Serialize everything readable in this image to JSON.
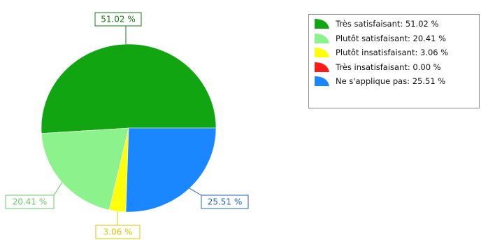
{
  "chart_data": {
    "type": "pie",
    "slices": [
      {
        "label": "Très satisfaisant",
        "value": 51.02,
        "color": "#11a611",
        "display": "51.02 %",
        "legend": "Très satisfaisant: 51.02 %"
      },
      {
        "label": "Plutôt satisfaisant",
        "value": 20.41,
        "color": "#8cf28c",
        "display": "20.41 %",
        "legend": "Plutôt satisfaisant: 20.41 %"
      },
      {
        "label": "Plutôt insatisfaisant",
        "value": 3.06,
        "color": "#ffff0a",
        "display": "3.06 %",
        "legend": "Plutôt insatisfaisant: 3.06 %"
      },
      {
        "label": "Très insatisfaisant",
        "value": 0.0,
        "color": "#ff1a1a",
        "display": "0.00 %",
        "legend": "Très insatisfaisant: 0.00 %"
      },
      {
        "label": "Ne s'applique pas",
        "value": 25.51,
        "color": "#1a86ff",
        "display": "25.51 %",
        "legend": "Ne s'applique pas: 25.51 %"
      }
    ],
    "label_border_colors": [
      "#1a7a1a",
      "#6ac86a",
      "#d8c800",
      "#cc0000",
      "#2064b8"
    ],
    "legend_position": "top-right"
  }
}
